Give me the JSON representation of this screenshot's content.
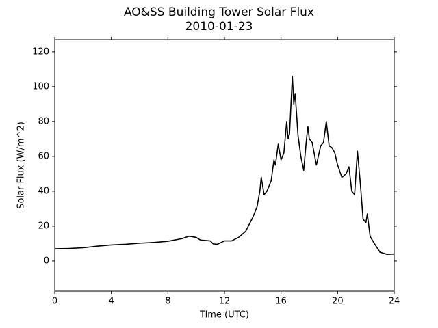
{
  "chart_data": {
    "type": "line",
    "title": "AO&SS Building Tower Solar Flux",
    "subtitle": "2010-01-23",
    "x_label": "Time (UTC)",
    "y_label": "Solar Flux (W/m^2)",
    "x": [
      0,
      1,
      2,
      3,
      4,
      5,
      6,
      7,
      8,
      9,
      9.5,
      10,
      10.3,
      11,
      11.2,
      11.5,
      12,
      12.5,
      13,
      13.5,
      14,
      14.3,
      14.5,
      14.6,
      14.8,
      15,
      15.3,
      15.5,
      15.6,
      15.8,
      16,
      16.2,
      16.4,
      16.5,
      16.6,
      16.8,
      16.9,
      17,
      17.2,
      17.4,
      17.6,
      17.8,
      17.9,
      18,
      18.2,
      18.5,
      18.8,
      19,
      19.2,
      19.4,
      19.6,
      19.8,
      20,
      20.3,
      20.6,
      20.8,
      21,
      21.2,
      21.4,
      21.6,
      21.8,
      22,
      22.1,
      22.3,
      22.6,
      23,
      23.5,
      24
    ],
    "series": [
      {
        "name": "Solar Flux",
        "color": "#000000",
        "values": [
          7,
          7.2,
          7.6,
          8.5,
          9.2,
          9.6,
          10.2,
          10.6,
          11.3,
          12.8,
          14.2,
          13.5,
          12,
          11.5,
          9.8,
          9.6,
          11.5,
          11.5,
          13.5,
          17,
          25,
          31,
          40,
          48,
          38,
          40,
          46,
          58,
          55,
          67,
          58,
          62,
          80,
          70,
          73,
          106,
          90,
          96,
          72,
          60,
          52,
          70,
          77,
          70,
          68,
          55,
          66,
          68,
          80,
          66,
          65,
          62,
          55,
          48,
          50,
          54,
          40,
          38,
          63,
          45,
          24,
          22,
          27,
          14,
          10,
          5,
          3.8,
          4
        ]
      }
    ],
    "xlim": [
      0,
      24
    ],
    "xticks": [
      0,
      4,
      8,
      12,
      16,
      20,
      24
    ],
    "ylim": [
      -17.3,
      127
    ],
    "yticks": [
      0,
      20,
      40,
      60,
      80,
      100,
      120
    ]
  }
}
